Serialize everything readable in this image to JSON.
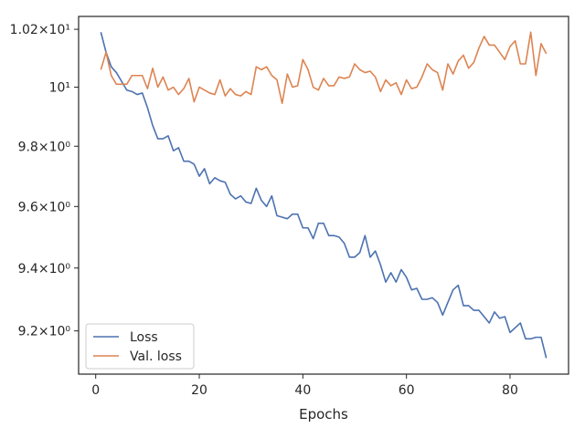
{
  "chart_data": {
    "type": "line",
    "xlabel": "Epochs",
    "ylabel": "",
    "yscale": "log",
    "xlim": [
      -3.3,
      91.3
    ],
    "ylim": [
      9.065,
      10.245
    ],
    "xticks": [
      0,
      20,
      40,
      60,
      80
    ],
    "xtick_labels": [
      "0",
      "20",
      "40",
      "60",
      "80"
    ],
    "yticks": [
      9.2,
      9.4,
      9.6,
      9.8,
      10.0,
      10.2
    ],
    "ytick_labels": [
      "9.2×10⁰",
      "9.4×10⁰",
      "9.6×10⁰",
      "9.8×10⁰",
      "10¹",
      "1.02×10¹"
    ],
    "legend_position": "lower-left",
    "grid": false,
    "series": [
      {
        "name": "Loss",
        "color": "#4c72b0",
        "x": [
          1,
          2,
          3,
          4,
          5,
          6,
          7,
          8,
          9,
          10,
          11,
          12,
          13,
          14,
          15,
          16,
          17,
          18,
          19,
          20,
          21,
          22,
          23,
          24,
          25,
          26,
          27,
          28,
          29,
          30,
          31,
          32,
          33,
          34,
          35,
          36,
          37,
          38,
          39,
          40,
          41,
          42,
          43,
          44,
          45,
          46,
          47,
          48,
          49,
          50,
          51,
          52,
          53,
          54,
          55,
          56,
          57,
          58,
          59,
          60,
          61,
          62,
          63,
          64,
          65,
          66,
          67,
          68,
          69,
          70,
          71,
          72,
          73,
          74,
          75,
          76,
          77,
          78,
          79,
          80,
          81,
          82,
          83,
          84,
          85,
          86,
          87
        ],
        "y": [
          10.19,
          10.12,
          10.07,
          10.05,
          10.02,
          9.99,
          9.985,
          9.975,
          9.98,
          9.93,
          9.87,
          9.825,
          9.825,
          9.835,
          9.785,
          9.795,
          9.75,
          9.75,
          9.74,
          9.7,
          9.725,
          9.675,
          9.695,
          9.685,
          9.68,
          9.64,
          9.625,
          9.635,
          9.615,
          9.61,
          9.66,
          9.62,
          9.6,
          9.635,
          9.57,
          9.565,
          9.56,
          9.575,
          9.575,
          9.53,
          9.53,
          9.495,
          9.545,
          9.545,
          9.505,
          9.505,
          9.5,
          9.48,
          9.435,
          9.435,
          9.45,
          9.505,
          9.435,
          9.455,
          9.41,
          9.355,
          9.385,
          9.355,
          9.395,
          9.37,
          9.33,
          9.335,
          9.3,
          9.3,
          9.305,
          9.29,
          9.25,
          9.29,
          9.33,
          9.345,
          9.28,
          9.28,
          9.265,
          9.265,
          9.245,
          9.225,
          9.26,
          9.24,
          9.245,
          9.195,
          9.21,
          9.225,
          9.175,
          9.175,
          9.18,
          9.18,
          9.115
        ]
      },
      {
        "name": "Val. loss",
        "color": "#dd8452",
        "x": [
          1,
          2,
          3,
          4,
          5,
          6,
          7,
          8,
          9,
          10,
          11,
          12,
          13,
          14,
          15,
          16,
          17,
          18,
          19,
          20,
          21,
          22,
          23,
          24,
          25,
          26,
          27,
          28,
          29,
          30,
          31,
          32,
          33,
          34,
          35,
          36,
          37,
          38,
          39,
          40,
          41,
          42,
          43,
          44,
          45,
          46,
          47,
          48,
          49,
          50,
          51,
          52,
          53,
          54,
          55,
          56,
          57,
          58,
          59,
          60,
          61,
          62,
          63,
          64,
          65,
          66,
          67,
          68,
          69,
          70,
          71,
          72,
          73,
          74,
          75,
          76,
          77,
          78,
          79,
          80,
          81,
          82,
          83,
          84,
          85,
          86,
          87
        ],
        "y": [
          10.06,
          10.12,
          10.04,
          10.01,
          10.01,
          10.01,
          10.04,
          10.04,
          10.04,
          9.995,
          10.065,
          10.0,
          10.035,
          9.99,
          10.0,
          9.975,
          9.995,
          10.03,
          9.95,
          10.0,
          9.99,
          9.98,
          9.975,
          10.025,
          9.97,
          9.995,
          9.975,
          9.97,
          9.985,
          9.975,
          10.07,
          10.06,
          10.07,
          10.04,
          10.025,
          9.945,
          10.045,
          10.0,
          10.005,
          10.095,
          10.06,
          10.0,
          9.99,
          10.03,
          10.005,
          10.005,
          10.035,
          10.03,
          10.035,
          10.08,
          10.06,
          10.05,
          10.055,
          10.035,
          9.985,
          10.025,
          10.005,
          10.015,
          9.975,
          10.025,
          9.995,
          10.0,
          10.035,
          10.08,
          10.06,
          10.05,
          9.99,
          10.08,
          10.045,
          10.09,
          10.11,
          10.065,
          10.085,
          10.135,
          10.175,
          10.145,
          10.145,
          10.12,
          10.095,
          10.14,
          10.16,
          10.08,
          10.08,
          10.19,
          10.04,
          10.15,
          10.115
        ]
      }
    ]
  }
}
